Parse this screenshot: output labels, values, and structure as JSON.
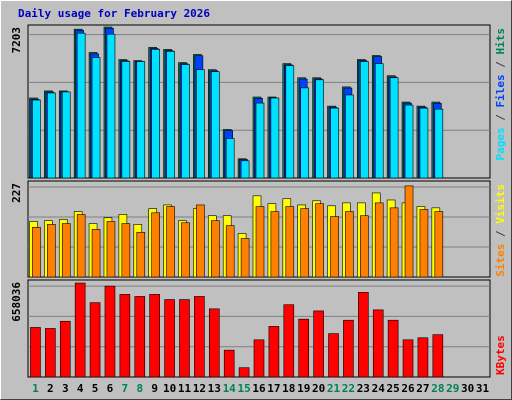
{
  "title": "Daily usage for February 2026",
  "separator": " / ",
  "chart_data": [
    {
      "type": "bar",
      "ylim": [
        0,
        7203
      ],
      "yticks": [
        7203
      ],
      "series": [
        {
          "name": "Hits",
          "color": "#00805c",
          "values": [
            3816,
            4154,
            4154,
            7100,
            5989,
            7203,
            5651,
            5603,
            6231,
            6134,
            5506,
            5893,
            5168,
            2318,
            918,
            3864,
            3864,
            5458,
            4782,
            4782,
            3429,
            4347,
            5651,
            5844,
            4878,
            3623,
            3429,
            3623,
            null,
            null,
            null
          ]
        },
        {
          "name": "Files",
          "color": "#0040ff",
          "values": [
            3760,
            4100,
            4110,
            7040,
            5920,
            7140,
            5600,
            5560,
            6180,
            6080,
            5450,
            5830,
            5110,
            2260,
            880,
            3800,
            3820,
            5400,
            4720,
            4730,
            3380,
            4290,
            5600,
            5790,
            4820,
            3570,
            3380,
            3560,
            null,
            null,
            null
          ]
        },
        {
          "name": "Pages",
          "color": "#00e0ff",
          "values": [
            3719,
            4057,
            4106,
            6907,
            5748,
            6859,
            5555,
            5555,
            6134,
            6038,
            5410,
            5168,
            5072,
            1884,
            821,
            3574,
            3816,
            5361,
            4299,
            4685,
            3333,
            3961,
            5555,
            5458,
            4782,
            3478,
            3333,
            3284,
            null,
            null,
            null
          ]
        }
      ]
    },
    {
      "type": "bar",
      "ylim": [
        0,
        227
      ],
      "yticks": [
        227
      ],
      "series": [
        {
          "name": "Visits",
          "color": "#ffff00",
          "values": [
            134,
            136,
            139,
            158,
            129,
            143,
            151,
            127,
            165,
            174,
            136,
            165,
            148,
            148,
            105,
            196,
            177,
            189,
            174,
            184,
            172,
            179,
            179,
            203,
            186,
            179,
            170,
            167,
            null,
            null,
            null
          ]
        },
        {
          "name": "Sites",
          "color": "#ff8000",
          "values": [
            120,
            127,
            129,
            151,
            115,
            134,
            129,
            108,
            155,
            170,
            131,
            174,
            136,
            124,
            93,
            170,
            158,
            170,
            165,
            177,
            146,
            158,
            148,
            179,
            167,
            220,
            163,
            158,
            null,
            null,
            null
          ]
        }
      ]
    },
    {
      "type": "bar",
      "ylim": [
        0,
        658036
      ],
      "yticks": [
        658036
      ],
      "categories": [
        "1",
        "2",
        "3",
        "4",
        "5",
        "6",
        "7",
        "8",
        "9",
        "10",
        "11",
        "12",
        "13",
        "14",
        "15",
        "16",
        "17",
        "18",
        "19",
        "20",
        "21",
        "22",
        "23",
        "24",
        "25",
        "26",
        "27",
        "28",
        "29",
        "30",
        "31"
      ],
      "category_colors": [
        "#00805c",
        "#000000",
        "#000000",
        "#000000",
        "#000000",
        "#000000",
        "#00805c",
        "#00805c",
        "#000000",
        "#000000",
        "#000000",
        "#000000",
        "#000000",
        "#00805c",
        "#00805c",
        "#000000",
        "#000000",
        "#000000",
        "#000000",
        "#000000",
        "#00805c",
        "#00805c",
        "#000000",
        "#000000",
        "#000000",
        "#000000",
        "#000000",
        "#00805c",
        "#00805c",
        "#000000",
        "#000000"
      ],
      "series": [
        {
          "name": "KBytes",
          "color": "#ff0000",
          "values": [
            343344,
            336191,
            386262,
            650928,
            515016,
            629464,
            572240,
            557934,
            572240,
            536475,
            536475,
            557934,
            472098,
            185978,
            64377,
            257508,
            350497,
            500710,
            400568,
            457792,
            300426,
            393415,
            586546,
            464945,
            393415,
            257508,
            271814,
            293273,
            null,
            null,
            null
          ]
        }
      ]
    }
  ]
}
